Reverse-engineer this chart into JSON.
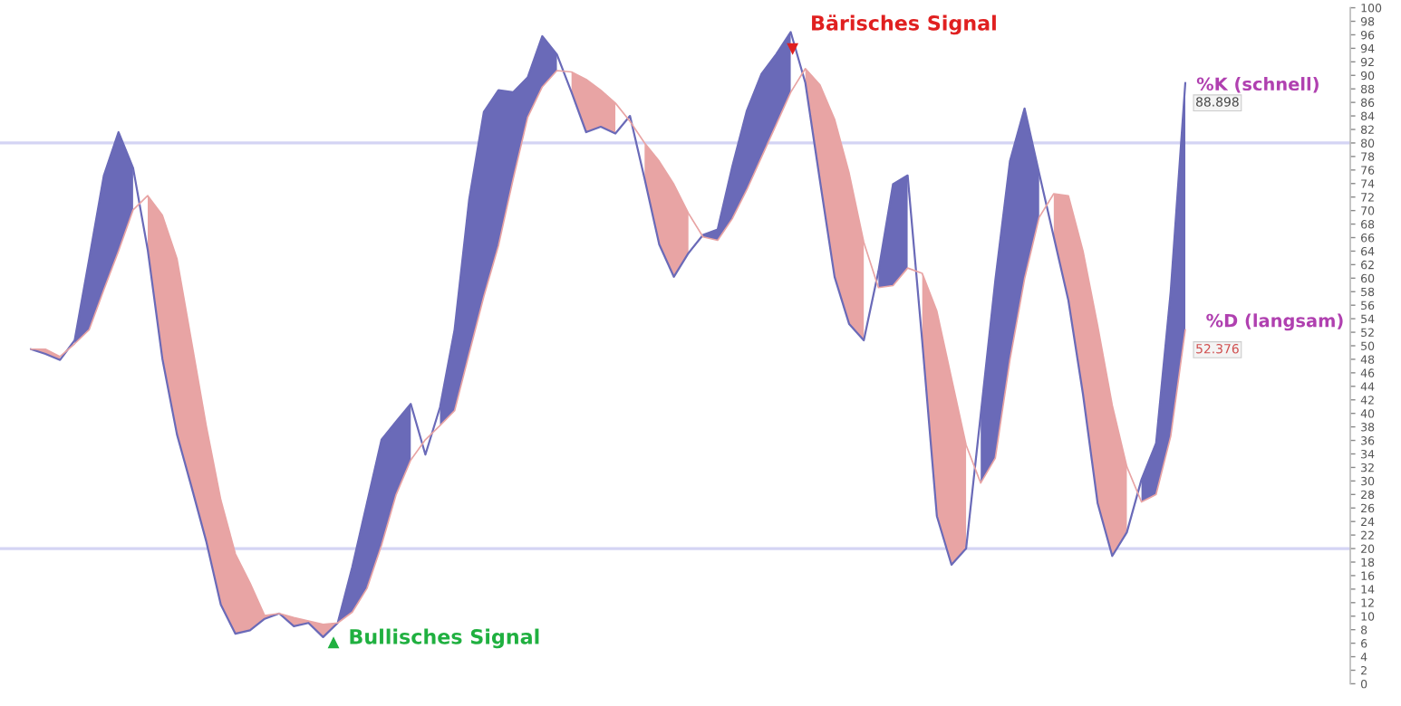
{
  "chart_data": {
    "type": "line",
    "categories": [
      null,
      null,
      null,
      null,
      null,
      null,
      null,
      null,
      null,
      null,
      null,
      null,
      null,
      null,
      null,
      null,
      null,
      null,
      null,
      null,
      null,
      null,
      null,
      null,
      null,
      null,
      null,
      null,
      null,
      null,
      null,
      null,
      null,
      null,
      null,
      null,
      null,
      null,
      null,
      null,
      null,
      null,
      null,
      null,
      null,
      null,
      null,
      null,
      null,
      null,
      null,
      null,
      null,
      null,
      null,
      null,
      null,
      null,
      null,
      null,
      null,
      null,
      null,
      null,
      null,
      null,
      null,
      null,
      null,
      null,
      null,
      null,
      null,
      null,
      null,
      null,
      null,
      null,
      null,
      null
    ],
    "series": [
      {
        "name": "%K (schnell)",
        "color": "#6a6ab8",
        "values": [
          49.5,
          48.8,
          47.9,
          50.8,
          62.9,
          75.2,
          81.6,
          76.3,
          64.2,
          48.1,
          36.9,
          29.1,
          21.1,
          11.7,
          7.4,
          7.9,
          9.6,
          10.4,
          8.5,
          9.0,
          6.9,
          9.0,
          17.3,
          26.7,
          36.1,
          38.8,
          41.4,
          33.9,
          40.9,
          52.4,
          71.7,
          84.6,
          87.8,
          87.5,
          89.7,
          95.8,
          93.1,
          87.5,
          81.6,
          82.4,
          81.4,
          84.0,
          74.7,
          65.0,
          60.2,
          63.7,
          66.4,
          67.2,
          76.5,
          84.8,
          90.2,
          93.1,
          96.4,
          88.9,
          74.4,
          60.2,
          53.2,
          50.8,
          61.0,
          73.9,
          75.2,
          50.6,
          24.8,
          17.6,
          20.0,
          39.8,
          59.7,
          77.3,
          85.1,
          75.5,
          66.1,
          56.7,
          42.8,
          26.7,
          18.9,
          22.4,
          30.2,
          35.6,
          58.0,
          88.898
        ],
        "upper": [
          null,
          null,
          null,
          50.8,
          62.9,
          75.2,
          81.6,
          76.3,
          null,
          null,
          null,
          null,
          null,
          null,
          null,
          null,
          null,
          null,
          null,
          null,
          null,
          9.0,
          17.3,
          26.7,
          36.1,
          38.8,
          41.4,
          null,
          40.9,
          52.4,
          71.7,
          84.6,
          87.8,
          87.5,
          89.7,
          95.8,
          93.1,
          null,
          null,
          null,
          null,
          null,
          null,
          null,
          null,
          null,
          66.4,
          67.2,
          76.5,
          84.8,
          90.2,
          93.1,
          96.4,
          null,
          null,
          null,
          null,
          null,
          61.0,
          73.9,
          75.2,
          null,
          null,
          null,
          null,
          39.8,
          59.7,
          77.3,
          85.1,
          75.5,
          null,
          null,
          null,
          null,
          null,
          null,
          30.2,
          35.6,
          58.0,
          88.898
        ],
        "lower": [
          null,
          null,
          null,
          50.3,
          52.4,
          58.3,
          64.0,
          70.1,
          null,
          null,
          null,
          null,
          null,
          null,
          null,
          null,
          null,
          null,
          null,
          null,
          null,
          9.0,
          10.6,
          14.1,
          20.5,
          28.0,
          33.1,
          null,
          38.2,
          40.4,
          48.9,
          57.3,
          64.8,
          74.6,
          83.8,
          88.3,
          90.7,
          null,
          null,
          null,
          null,
          null,
          null,
          null,
          null,
          null,
          66.1,
          65.6,
          68.8,
          73.1,
          77.9,
          82.7,
          87.5,
          null,
          null,
          null,
          null,
          null,
          58.6,
          58.9,
          61.5,
          null,
          null,
          null,
          null,
          29.7,
          33.4,
          47.9,
          59.9,
          69.0,
          null,
          null,
          null,
          null,
          null,
          null,
          26.9,
          28.0,
          36.6,
          52.376
        ],
        "value_labels": [
          null,
          null,
          null,
          null,
          null,
          null,
          null,
          null,
          null,
          null,
          null,
          null,
          null,
          null,
          null,
          null,
          null,
          null,
          null,
          null,
          null,
          null,
          null,
          null,
          null,
          null,
          null,
          null,
          null,
          null,
          null,
          null,
          null,
          null,
          null,
          null,
          null,
          null,
          null,
          null,
          null,
          null,
          null,
          null,
          null,
          null,
          null,
          null,
          null,
          null,
          null,
          null,
          null,
          null,
          null,
          null,
          null,
          null,
          null,
          null,
          null,
          null,
          null,
          null,
          null,
          null,
          null,
          null,
          null,
          null,
          null,
          null,
          null,
          null,
          null,
          null,
          null,
          null,
          null,
          "88.898"
        ]
      },
      {
        "name": "%D (langsam)",
        "color": "#e8a4a4",
        "values": [
          49.5,
          49.5,
          48.4,
          50.3,
          52.4,
          58.3,
          64.0,
          70.1,
          72.2,
          69.3,
          62.9,
          50.6,
          38.2,
          27.2,
          19.2,
          14.9,
          10.1,
          10.4,
          9.8,
          9.3,
          8.8,
          9.0,
          10.6,
          14.1,
          20.5,
          28.0,
          33.1,
          36.1,
          38.2,
          40.4,
          48.9,
          57.3,
          64.8,
          74.6,
          83.8,
          88.3,
          90.7,
          90.5,
          89.4,
          87.8,
          85.9,
          83.2,
          80.0,
          77.3,
          73.9,
          69.6,
          66.1,
          65.6,
          68.8,
          73.1,
          77.9,
          82.7,
          87.5,
          91.0,
          88.6,
          83.5,
          75.5,
          65.3,
          58.6,
          58.9,
          61.5,
          60.7,
          55.1,
          45.2,
          35.3,
          29.7,
          33.4,
          47.9,
          59.9,
          69.0,
          72.5,
          72.2,
          64.0,
          53.0,
          41.2,
          32.1,
          26.9,
          28.0,
          36.6,
          52.376
        ],
        "upper": [
          49.5,
          49.5,
          48.4,
          null,
          null,
          null,
          null,
          null,
          72.2,
          69.3,
          62.9,
          50.6,
          38.2,
          27.2,
          19.2,
          14.9,
          10.1,
          10.4,
          9.8,
          9.3,
          8.8,
          9.0,
          null,
          null,
          null,
          null,
          null,
          null,
          null,
          null,
          null,
          null,
          null,
          null,
          null,
          null,
          null,
          90.5,
          89.4,
          87.8,
          85.9,
          null,
          80.0,
          77.3,
          73.9,
          69.6,
          null,
          null,
          null,
          null,
          null,
          null,
          null,
          91.0,
          88.6,
          83.5,
          75.5,
          65.3,
          null,
          null,
          null,
          60.7,
          55.1,
          45.2,
          35.3,
          null,
          null,
          null,
          null,
          null,
          72.5,
          72.2,
          64.0,
          53.0,
          41.2,
          32.1,
          null,
          null,
          null,
          null
        ],
        "lower": [
          49.5,
          48.8,
          47.9,
          null,
          null,
          null,
          null,
          null,
          64.2,
          48.1,
          36.9,
          29.1,
          21.1,
          11.7,
          7.4,
          7.9,
          9.6,
          10.4,
          8.5,
          9.0,
          6.9,
          9.0,
          null,
          null,
          null,
          null,
          null,
          null,
          null,
          null,
          null,
          null,
          null,
          null,
          null,
          null,
          null,
          87.5,
          81.6,
          82.4,
          81.4,
          null,
          74.7,
          65.0,
          60.2,
          63.7,
          null,
          null,
          null,
          null,
          null,
          null,
          null,
          88.9,
          74.4,
          60.2,
          53.2,
          50.8,
          null,
          null,
          null,
          50.6,
          24.8,
          17.6,
          20.0,
          null,
          null,
          null,
          null,
          null,
          66.1,
          56.7,
          42.8,
          26.7,
          18.9,
          22.4,
          null,
          null,
          null,
          null
        ],
        "value_labels": [
          null,
          null,
          null,
          null,
          null,
          null,
          null,
          null,
          null,
          null,
          null,
          null,
          null,
          null,
          null,
          null,
          null,
          null,
          null,
          null,
          null,
          null,
          null,
          null,
          null,
          null,
          null,
          null,
          null,
          null,
          null,
          null,
          null,
          null,
          null,
          null,
          null,
          null,
          null,
          null,
          null,
          null,
          null,
          null,
          null,
          null,
          null,
          null,
          null,
          null,
          null,
          null,
          null,
          null,
          null,
          null,
          null,
          null,
          null,
          null,
          null,
          null,
          null,
          null,
          null,
          null,
          null,
          null,
          null,
          null,
          null,
          null,
          null,
          null,
          null,
          null,
          null,
          null,
          null,
          "52.376"
        ]
      }
    ],
    "ylim": [
      0,
      100
    ],
    "yticks": [
      0,
      2,
      4,
      6,
      8,
      10,
      12,
      14,
      16,
      18,
      20,
      22,
      24,
      26,
      28,
      30,
      32,
      34,
      36,
      38,
      40,
      42,
      44,
      46,
      48,
      50,
      52,
      54,
      56,
      58,
      60,
      62,
      64,
      66,
      68,
      70,
      72,
      74,
      76,
      78,
      80,
      82,
      84,
      86,
      88,
      90,
      92,
      94,
      96,
      98,
      100
    ],
    "ref_lines": [
      {
        "axis": "y",
        "value": 80,
        "color": "#d4d4f4"
      },
      {
        "axis": "y",
        "value": 20,
        "color": "#d4d4f4"
      }
    ],
    "annotations": [
      "Bärisches Signal",
      "Bullisches Signal"
    ],
    "grid": false,
    "legend": false,
    "tick_labels": "y"
  }
}
